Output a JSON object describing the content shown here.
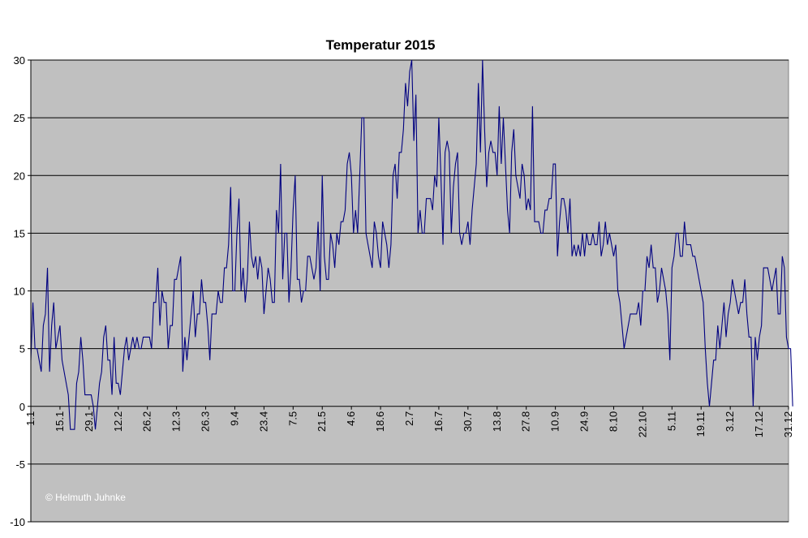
{
  "chart_data": {
    "type": "line",
    "title": "Temperatur 2015",
    "credit": "© Helmuth Juhnke",
    "background_color": "#c0c0c0",
    "line_color": "#000080",
    "grid": true,
    "ylim": [
      -10,
      30
    ],
    "yticks": [
      -10,
      -5,
      0,
      5,
      10,
      15,
      20,
      25,
      30
    ],
    "xlim": [
      0,
      364
    ],
    "xtick_labels": [
      {
        "day": 0,
        "label": "1.1"
      },
      {
        "day": 14,
        "label": "15.1"
      },
      {
        "day": 28,
        "label": "29.1"
      },
      {
        "day": 42,
        "label": "12.2"
      },
      {
        "day": 56,
        "label": "26.2"
      },
      {
        "day": 70,
        "label": "12.3"
      },
      {
        "day": 84,
        "label": "26.3"
      },
      {
        "day": 98,
        "label": "9.4"
      },
      {
        "day": 112,
        "label": "23.4"
      },
      {
        "day": 126,
        "label": "7.5"
      },
      {
        "day": 140,
        "label": "21.5"
      },
      {
        "day": 154,
        "label": "4.6"
      },
      {
        "day": 168,
        "label": "18.6"
      },
      {
        "day": 182,
        "label": "2.7"
      },
      {
        "day": 196,
        "label": "16.7"
      },
      {
        "day": 210,
        "label": "30.7"
      },
      {
        "day": 224,
        "label": "13.8"
      },
      {
        "day": 238,
        "label": "27.8"
      },
      {
        "day": 252,
        "label": "10.9"
      },
      {
        "day": 266,
        "label": "24.9"
      },
      {
        "day": 280,
        "label": "8.10"
      },
      {
        "day": 294,
        "label": "22.10"
      },
      {
        "day": 308,
        "label": "5.11"
      },
      {
        "day": 322,
        "label": "19.11"
      },
      {
        "day": 336,
        "label": "3.12"
      },
      {
        "day": 350,
        "label": "17.12"
      },
      {
        "day": 364,
        "label": "31.12"
      }
    ],
    "series": [
      {
        "values": [
          4,
          9,
          5,
          5,
          4,
          3,
          7,
          8,
          12,
          3,
          7,
          9,
          5,
          6,
          7,
          4,
          3,
          2,
          1,
          -2,
          -2,
          -2,
          2,
          3,
          6,
          4,
          1,
          1,
          1,
          1,
          0,
          -2,
          0,
          2,
          3,
          6,
          7,
          4,
          4,
          1,
          6,
          2,
          2,
          1,
          3,
          5,
          6,
          4,
          5,
          6,
          5,
          6,
          5,
          5,
          6,
          6,
          6,
          6,
          5,
          9,
          9,
          12,
          7,
          10,
          9,
          9,
          5,
          7,
          7,
          11,
          11,
          12,
          13,
          3,
          6,
          4,
          6,
          8,
          10,
          6,
          8,
          8,
          11,
          9,
          9,
          7,
          4,
          8,
          8,
          8,
          10,
          9,
          9,
          12,
          12,
          14,
          19,
          10,
          10,
          15,
          18,
          10,
          12,
          9,
          11,
          16,
          13,
          12,
          13,
          11,
          13,
          12,
          8,
          10,
          12,
          11,
          9,
          9,
          17,
          15,
          21,
          11,
          15,
          15,
          9,
          12,
          17,
          20,
          11,
          11,
          9,
          10,
          10,
          13,
          13,
          12,
          11,
          12,
          16,
          10,
          20,
          13,
          11,
          11,
          15,
          14,
          12,
          15,
          14,
          16,
          16,
          17,
          21,
          22,
          20,
          15,
          17,
          15,
          20,
          25,
          25,
          15,
          14,
          13,
          12,
          16,
          15,
          13,
          12,
          16,
          15,
          14,
          12,
          14,
          20,
          21,
          18,
          22,
          22,
          24,
          28,
          26,
          29,
          30,
          23,
          27,
          15,
          17,
          15,
          15,
          18,
          18,
          18,
          17,
          20,
          19,
          25,
          20,
          14,
          22,
          23,
          22,
          15,
          19,
          21,
          22,
          15,
          14,
          15,
          15,
          16,
          14,
          17,
          19,
          21,
          28,
          22,
          30,
          24,
          19,
          22,
          23,
          22,
          22,
          20,
          26,
          21,
          25,
          21,
          17,
          15,
          22,
          24,
          20,
          19,
          18,
          21,
          20,
          17,
          18,
          17,
          26,
          16,
          16,
          16,
          15,
          15,
          17,
          17,
          18,
          18,
          21,
          21,
          13,
          16,
          18,
          18,
          17,
          15,
          18,
          13,
          14,
          13,
          14,
          13,
          15,
          13,
          15,
          14,
          14,
          15,
          14,
          14,
          16,
          13,
          14,
          16,
          14,
          15,
          14,
          13,
          14,
          10,
          9,
          7,
          5,
          6,
          7,
          8,
          8,
          8,
          8,
          9,
          7,
          10,
          10,
          13,
          12,
          14,
          12,
          12,
          9,
          10,
          12,
          11,
          10,
          8,
          4,
          12,
          13,
          15,
          15,
          13,
          13,
          16,
          14,
          14,
          14,
          13,
          13,
          12,
          11,
          10,
          9,
          5,
          2,
          0,
          2,
          4,
          4,
          7,
          5,
          7,
          9,
          6,
          8,
          9,
          11,
          10,
          9,
          8,
          9,
          9,
          11,
          8,
          6,
          6,
          0,
          6,
          4,
          6,
          7,
          12,
          12,
          12,
          11,
          10,
          11,
          12,
          8,
          8,
          13,
          12,
          6,
          5,
          5,
          0
        ]
      }
    ]
  }
}
